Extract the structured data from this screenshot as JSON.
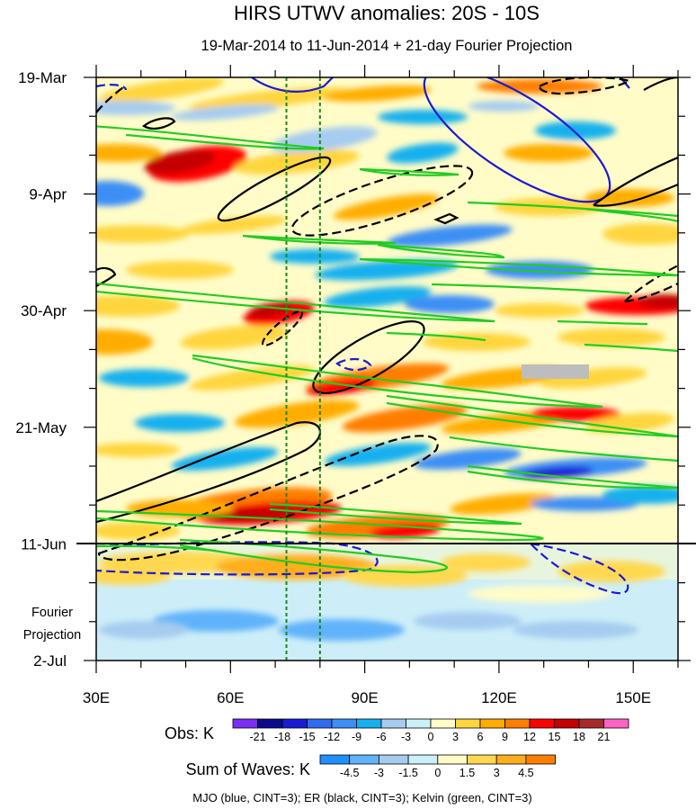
{
  "chart_data": {
    "type": "heatmap",
    "title": "HIRS UTWV anomalies: 20S - 10S",
    "subtitle": "19-Mar-2014 to 11-Jun-2014 + 21-day Fourier Projection",
    "x_tick_labels": [
      "30E",
      "60E",
      "90E",
      "120E",
      "150E"
    ],
    "x_tick_values": [
      30,
      60,
      90,
      120,
      150
    ],
    "xlim": [
      30,
      160
    ],
    "y_tick_labels": [
      "19-Mar",
      "9-Apr",
      "30-Apr",
      "21-May",
      "11-Jun",
      "2-Jul"
    ],
    "y_tick_values": [
      "2014-03-19",
      "2014-04-09",
      "2014-04-30",
      "2014-05-21",
      "2014-06-11",
      "2014-07-02"
    ],
    "ylim": [
      "2014-03-19",
      "2014-07-02"
    ],
    "y_reversed": true,
    "projection_label": [
      "Fourier",
      "Projection"
    ],
    "projection_start": "2014-06-11",
    "reference_longitudes": [
      72.5,
      80
    ],
    "obs_colorbar": {
      "label": "Obs: K",
      "levels": [
        "-21",
        "-18",
        "-15",
        "-12",
        "-9",
        "-6",
        "-3",
        "0",
        "3",
        "6",
        "9",
        "12",
        "15",
        "18",
        "21"
      ],
      "colors": [
        "#7a2df5",
        "#0b0b8c",
        "#1a1ad6",
        "#2e6bf0",
        "#3d8ff5",
        "#16b0ee",
        "#a6ccf0",
        "#ccf0f8",
        "#fffcc8",
        "#ffd53d",
        "#ffad00",
        "#ff7e00",
        "#ff0000",
        "#c40000",
        "#a82a2a",
        "#ff63c4"
      ]
    },
    "waves_colorbar": {
      "label": "Sum of Waves: K",
      "levels": [
        "-4.5",
        "-3",
        "-1.5",
        "0",
        "1.5",
        "3",
        "4.5"
      ],
      "colors": [
        "#1e90ff",
        "#60b3fa",
        "#a6ccf0",
        "#ccf0f8",
        "#fffcc8",
        "#ffd84f",
        "#ffae1e",
        "#ff7e00"
      ]
    },
    "footer": "MJO (blue, CINT=3); ER (black, CINT=3); Kelvin (green, CINT=3)",
    "wave_colors": {
      "MJO": "#1a1ad6",
      "ER": "#000000",
      "Kelvin": "#22cc22"
    }
  }
}
